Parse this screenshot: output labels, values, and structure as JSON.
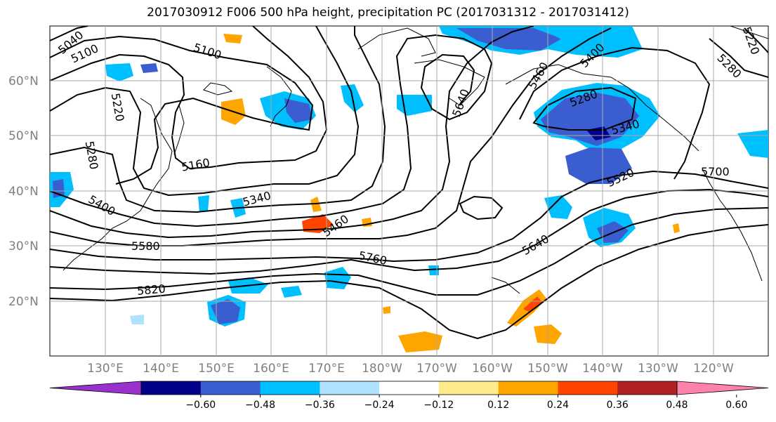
{
  "title": "2017030912 F006 500 hPa height, precipitation PC (2017031312 - 2017031412)",
  "lat_labels": [
    "60°N",
    "50°N",
    "40°N",
    "30°N",
    "20°N"
  ],
  "lon_labels": [
    "130°E",
    "140°E",
    "150°E",
    "160°E",
    "170°E",
    "180°W",
    "170°W",
    "160°W",
    "150°W",
    "140°W",
    "130°W",
    "120°W"
  ],
  "contour_labels": [
    "5040",
    "5100",
    "5100",
    "5220",
    "5280",
    "5160",
    "5340",
    "5400",
    "5460",
    "5580",
    "5760",
    "5820",
    "5640",
    "5640",
    "5460",
    "5400",
    "5280",
    "5340",
    "5520",
    "5700",
    "5220",
    "5280"
  ],
  "colorbar": {
    "ticks": [
      "−0.60",
      "−0.48",
      "−0.36",
      "−0.24",
      "−0.12",
      "0.12",
      "0.24",
      "0.36",
      "0.48",
      "0.60"
    ],
    "colors": [
      "#9932cc",
      "#00008b",
      "#3a5ed0",
      "#00bfff",
      "#b0e2ff",
      "#ffffff",
      "#ffeb8a",
      "#ffa500",
      "#ff4500",
      "#b22222",
      "#ff82ab"
    ]
  },
  "palette": {
    "blue_dark": "#3a5ed0",
    "blue": "#00bfff",
    "blue_light": "#b0e2ff",
    "navy": "#00008b",
    "yellow": "#ffeb8a",
    "orange": "#ffa500",
    "red": "#ff4500",
    "grid": "#a9a9a9"
  }
}
